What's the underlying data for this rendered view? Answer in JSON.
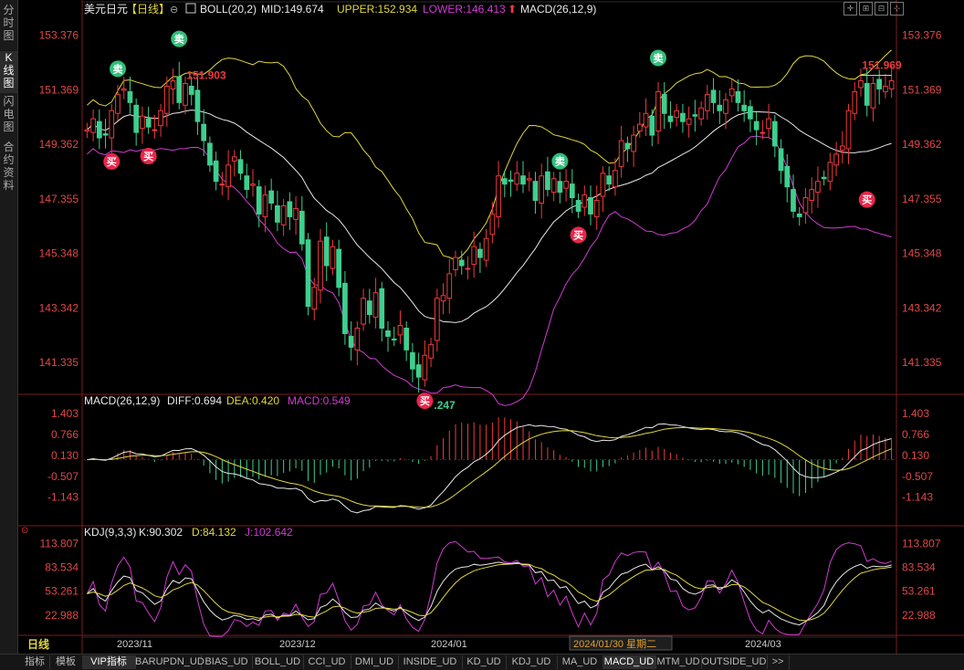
{
  "sidebar": {
    "items": [
      {
        "label": "分时图",
        "active": false
      },
      {
        "label": "K线图",
        "active": true
      },
      {
        "label": "闪电图",
        "active": false
      },
      {
        "label": "合约资料",
        "active": false
      }
    ]
  },
  "main": {
    "symbol": "美元日元",
    "period_tag": "【日线】",
    "indicator_line": {
      "boll": "BOLL(20,2)",
      "mid": "MID:149.674",
      "upper": "UPPER:152.934",
      "lower": "LOWER:146.413",
      "macd": "MACD(26,12,9)"
    },
    "y_ticks": [
      "153.376",
      "151.369",
      "149.362",
      "147.355",
      "145.348",
      "143.342",
      "141.335"
    ],
    "max_label": "151.969",
    "high_label": "151.903",
    "low_label": ".247",
    "signal_buy": "买",
    "signal_sell": "卖"
  },
  "macd_panel": {
    "title": "MACD(26,12,9)",
    "diff": "DIFF:0.694",
    "dea": "DEA:0.420",
    "macd": "MACD:0.549",
    "y_ticks": [
      "1.403",
      "0.766",
      "0.130",
      "-0.507",
      "-1.143"
    ]
  },
  "kdj_panel": {
    "title": "KDJ(9,3,3)",
    "k": "K:90.302",
    "d": "D:84.132",
    "j": "J:102.642",
    "y_ticks": [
      "113.807",
      "83.534",
      "53.261",
      "22.988"
    ]
  },
  "x_axis": {
    "period_label": "日线",
    "labels": [
      "2023/11",
      "2023/12",
      "2024/01",
      "2024/01/30 星期二",
      "2024/03"
    ]
  },
  "bottom_tabs": [
    "指标",
    "模板",
    "VIP指标",
    "BARUPDN_UD",
    "BIAS_UD",
    "BOLL_UD",
    "CCI_UD",
    "DMI_UD",
    "INSIDE_UD",
    "KD_UD",
    "KDJ_UD",
    "MA_UD",
    "MACD_UD",
    "MTM_UD",
    "OUTSIDE_UD",
    ">>"
  ],
  "bottom_tab_active": "MACD_UD",
  "colors": {
    "up": "#ef3a3a",
    "down": "#3ecf8e",
    "mid": "#e8e8e8",
    "upper": "#e2d83c",
    "lower": "#d23ad2",
    "diff": "#e8e8e8",
    "dea": "#e2d83c",
    "k": "#e8e8e8",
    "d": "#e2d83c",
    "j": "#d23ad2",
    "axis": "#e04848"
  },
  "chart_data": [
    {
      "type": "candlestick",
      "title": "美元日元 日线",
      "ylim": [
        140.3,
        154.0
      ],
      "key_prices": {
        "high_marked": 151.903,
        "max_marked": 151.969,
        "low_marked": 140.247
      },
      "closes": [
        149.9,
        150.3,
        149.6,
        149.7,
        150.6,
        151.2,
        151.4,
        150.9,
        149.8,
        150.4,
        150.0,
        149.9,
        150.6,
        151.5,
        151.7,
        150.9,
        151.6,
        151.2,
        150.2,
        149.5,
        148.6,
        148.0,
        147.9,
        148.6,
        148.9,
        148.3,
        147.7,
        147.9,
        146.8,
        147.5,
        147.2,
        146.5,
        147.1,
        146.7,
        147.0,
        145.7,
        143.4,
        144.1,
        145.8,
        144.9,
        145.6,
        144.1,
        142.4,
        141.9,
        142.6,
        143.7,
        143.1,
        143.9,
        142.6,
        142.3,
        142.2,
        142.7,
        141.8,
        141.1,
        140.8,
        141.6,
        142.0,
        143.7,
        143.8,
        144.6,
        145.2,
        144.9,
        144.8,
        145.6,
        145.2,
        145.9,
        146.8,
        148.2,
        147.9,
        148.0,
        148.3,
        147.9,
        148.1,
        147.3,
        148.2,
        147.7,
        148.1,
        147.6,
        148.0,
        147.4,
        146.9,
        147.5,
        146.8,
        147.3,
        148.3,
        147.9,
        148.4,
        149.5,
        149.2,
        149.7,
        150.1,
        150.5,
        149.7,
        151.3,
        150.5,
        150.2,
        150.6,
        150.2,
        150.3,
        150.4,
        150.7,
        151.2,
        150.9,
        150.6,
        151.0,
        151.4,
        150.9,
        150.6,
        150.3,
        149.9,
        149.8,
        150.3,
        149.3,
        148.4,
        147.8,
        146.9,
        146.7,
        147.4,
        147.7,
        148.0,
        148.1,
        148.7,
        149.0,
        149.3,
        150.6,
        151.3,
        151.7,
        150.8,
        151.6,
        151.4,
        151.5,
        151.7
      ],
      "series": [
        {
          "name": "MID",
          "last": 149.674
        },
        {
          "name": "UPPER",
          "last": 152.934
        },
        {
          "name": "LOWER",
          "last": 146.413
        }
      ],
      "y_ticks": [
        153.376,
        151.369,
        149.362,
        147.355,
        145.348,
        143.342,
        141.335
      ]
    },
    {
      "type": "bar",
      "title": "MACD(26,12,9)",
      "last": {
        "DIFF": 0.694,
        "DEA": 0.42,
        "MACD": 0.549
      },
      "ylim": [
        -1.9,
        1.6
      ],
      "y_ticks": [
        1.403,
        0.766,
        0.13,
        -0.507,
        -1.143
      ]
    },
    {
      "type": "line",
      "title": "KDJ(9,3,3)",
      "last": {
        "K": 90.302,
        "D": 84.132,
        "J": 102.642
      },
      "ylim": [
        -5,
        120
      ],
      "y_ticks": [
        113.807,
        83.534,
        53.261,
        22.988
      ]
    }
  ]
}
